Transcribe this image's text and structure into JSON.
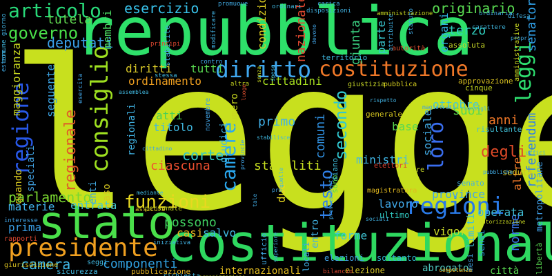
{
  "words": [
    {
      "text": "legge",
      "color": "#c8e01e"
    },
    {
      "text": "repubblica",
      "color": "#2ee06a"
    },
    {
      "text": "stato",
      "color": "#4ae04a"
    },
    {
      "text": "costituzionale",
      "color": "#2ed860"
    },
    {
      "text": "presidente",
      "color": "#f0a020"
    },
    {
      "text": "costituzione",
      "color": "#f07828"
    },
    {
      "text": "diritto",
      "color": "#40a8f0"
    },
    {
      "text": "consiglio",
      "color": "#9ee020"
    },
    {
      "text": "regione",
      "color": "#2858e8"
    },
    {
      "text": "regioni",
      "color": "#2a7ae8"
    },
    {
      "text": "leggi",
      "color": "#2ee070"
    },
    {
      "text": "camere",
      "color": "#2aa8f0"
    },
    {
      "text": "funzioni",
      "color": "#e8d820"
    },
    {
      "text": "articolo",
      "color": "#28d878"
    },
    {
      "text": "governo",
      "color": "#4ae04a"
    },
    {
      "text": "regionale",
      "color": "#e05a28"
    },
    {
      "text": "parlamento",
      "color": "#7ad830"
    },
    {
      "text": "camera",
      "color": "#40b8e8"
    },
    {
      "text": "componenti",
      "color": "#30a0e0"
    },
    {
      "text": "loro",
      "color": "#3a6ef0"
    },
    {
      "text": "secondo",
      "color": "#30c8d0"
    },
    {
      "text": "testo",
      "color": "#3080e8"
    },
    {
      "text": "comuni",
      "color": "#3090e0"
    },
    {
      "text": "corte",
      "color": "#30c8c8"
    },
    {
      "text": "esercizio",
      "color": "#38c0e8"
    },
    {
      "text": "originario",
      "color": "#58d850"
    },
    {
      "text": "terzo",
      "color": "#30d0c0"
    },
    {
      "text": "deputati",
      "color": "#3aa0e8"
    },
    {
      "text": "tutela",
      "color": "#60d850"
    },
    {
      "text": "membri",
      "color": "#4ad860"
    },
    {
      "text": "condizioni",
      "color": "#d8c820"
    },
    {
      "text": "parte",
      "color": "#38c8d0"
    },
    {
      "text": "organi",
      "color": "#30b0e0"
    },
    {
      "text": "senatori",
      "color": "#30a0e8"
    },
    {
      "text": "giunta",
      "color": "#3ad080"
    },
    {
      "text": "nazionale",
      "color": "#e04830"
    },
    {
      "text": "cittadini",
      "color": "#a8e020"
    },
    {
      "text": "ottobre",
      "color": "#40c8d8"
    },
    {
      "text": "diritti",
      "color": "#d8c828"
    },
    {
      "text": "tutti",
      "color": "#58d850"
    },
    {
      "text": "ordinamento",
      "color": "#f0a020"
    },
    {
      "text": "maggioranza",
      "color": "#c8d820"
    },
    {
      "text": "seguente",
      "color": "#3aa0e0"
    },
    {
      "text": "atti",
      "color": "#48d058"
    },
    {
      "text": "titolo",
      "color": "#40b8e0"
    },
    {
      "text": "primo",
      "color": "#40b0e8"
    },
    {
      "text": "suoi",
      "color": "#58d850"
    },
    {
      "text": "anni",
      "color": "#f07828"
    },
    {
      "text": "degli",
      "color": "#e04a28"
    },
    {
      "text": "ciascuna",
      "color": "#f05030"
    },
    {
      "text": "stabiliti",
      "color": "#c8e020"
    },
    {
      "text": "ministri",
      "color": "#40b8e8"
    },
    {
      "text": "base",
      "color": "#58d850"
    },
    {
      "text": "sociale",
      "color": "#40a8e0"
    },
    {
      "text": "altre",
      "color": "#f07828"
    },
    {
      "text": "referendum",
      "color": "#3080e8"
    },
    {
      "text": "norme",
      "color": "#3a78e8"
    },
    {
      "text": "materie",
      "color": "#40b0e8"
    },
    {
      "text": "entrata",
      "color": "#48c8d0"
    },
    {
      "text": "province",
      "color": "#40a8e8"
    },
    {
      "text": "operata",
      "color": "#40c0d8"
    },
    {
      "text": "lavoro",
      "color": "#40a8e8"
    },
    {
      "text": "possono",
      "color": "#40d060"
    },
    {
      "text": "casi",
      "color": "#e8b820"
    },
    {
      "text": "salvo",
      "color": "#40b8e0"
    },
    {
      "text": "forme",
      "color": "#40c8d8"
    },
    {
      "text": "vigore",
      "color": "#c8d828"
    },
    {
      "text": "prima",
      "color": "#3aa0e8"
    },
    {
      "text": "due",
      "color": "#e8d820"
    },
    {
      "text": "ultimo",
      "color": "#30c8c0"
    },
    {
      "text": "elezioni",
      "color": "#40a0e0"
    },
    {
      "text": "soltanto",
      "color": "#30b8d0"
    },
    {
      "text": "abrogato",
      "color": "#50c8c0"
    },
    {
      "text": "internazionali",
      "color": "#e8c020"
    },
    {
      "text": "pubblicazione",
      "color": "#e0b020"
    },
    {
      "text": "città",
      "color": "#58d850"
    },
    {
      "text": "speciali",
      "color": "#40a0e0"
    },
    {
      "text": "quando",
      "color": "#d8c820"
    },
    {
      "text": "enti",
      "color": "#40a8e0"
    },
    {
      "text": "caso",
      "color": "#d8c820"
    },
    {
      "text": "regionali",
      "color": "#40b0e0"
    },
    {
      "text": "giudici",
      "color": "#40b8e8"
    },
    {
      "text": "numero",
      "color": "#c8d820"
    },
    {
      "text": "limiti",
      "color": "#40c0d8"
    },
    {
      "text": "entro",
      "color": "#40b0e0"
    },
    {
      "text": "sensi",
      "color": "#30a0e0"
    },
    {
      "text": "metropolitane",
      "color": "#40a0e8"
    },
    {
      "text": "libertà",
      "color": "#58d850"
    },
    {
      "text": "rapporti",
      "color": "#e04830"
    },
    {
      "text": "giurisdizione",
      "color": "#d8c020"
    },
    {
      "text": "sicurezza",
      "color": "#40b8e0"
    },
    {
      "text": "elezione",
      "color": "#d8c828"
    },
    {
      "text": "locali",
      "color": "#40a8e0"
    },
    {
      "text": "seduta",
      "color": "#d8c020"
    },
    {
      "text": "senato",
      "color": "#40b0e0"
    },
    {
      "text": "risultante",
      "color": "#40c0d8"
    },
    {
      "text": "generale",
      "color": "#d8c820"
    },
    {
      "text": "giustizia",
      "color": "#c8d828"
    },
    {
      "text": "pubblica",
      "color": "#d8d020"
    },
    {
      "text": "territorio",
      "color": "#40b8e0"
    },
    {
      "text": "approvazione",
      "color": "#d8c020"
    },
    {
      "text": "cinque",
      "color": "#c8d820"
    },
    {
      "text": "assoluta",
      "color": "#c8d828"
    },
    {
      "text": "autorità",
      "color": "#e05030"
    },
    {
      "text": "stabilite",
      "color": "#40b0e0"
    },
    {
      "text": "sono",
      "color": "#58d850"
    },
    {
      "text": "siano",
      "color": "#40c0e0"
    },
    {
      "text": "ufficio",
      "color": "#40a8e0"
    },
    {
      "text": "richiesta",
      "color": "#40b8e0"
    },
    {
      "text": "bilancio",
      "color": "#e04830"
    },
    {
      "text": "tre",
      "color": "#c8d828"
    },
    {
      "text": "magistratura",
      "color": "#e0b820"
    },
    {
      "text": "mesi",
      "color": "#40a0e0"
    },
    {
      "text": "seggi",
      "color": "#40b8e0"
    },
    {
      "text": "personale",
      "color": "#c8d820"
    },
    {
      "text": "assicura",
      "color": "#d8c020"
    },
    {
      "text": "elettori",
      "color": "#e04030"
    },
    {
      "text": "comune",
      "color": "#40b8e0"
    },
    {
      "text": "giorno",
      "color": "#40b0e0"
    },
    {
      "text": "estero",
      "color": "#40a8e0"
    },
    {
      "text": "contro",
      "color": "#40a0e0"
    },
    {
      "text": "stessa",
      "color": "#40b8e0"
    },
    {
      "text": "altra",
      "color": "#c8d820"
    },
    {
      "text": "principi",
      "color": "#e04830"
    },
    {
      "text": "modificare",
      "color": "#40b0e0"
    },
    {
      "text": "promuove",
      "color": "#40a8e0"
    },
    {
      "text": "ordinari",
      "color": "#40b8e0"
    },
    {
      "text": "disposizioni",
      "color": "#40b0e0"
    },
    {
      "text": "carica",
      "color": "#40a8e0"
    },
    {
      "text": "amministrazione",
      "color": "#c8d820"
    },
    {
      "text": "amministrative",
      "color": "#c8d820"
    },
    {
      "text": "ordinaria",
      "color": "#40a8e0"
    },
    {
      "text": "difesa",
      "color": "#40b0e0"
    },
    {
      "text": "carattere",
      "color": "#40b8e0"
    },
    {
      "text": "novembre",
      "color": "#40a0e0"
    },
    {
      "text": "luogo",
      "color": "#e05030"
    },
    {
      "text": "stabilisce",
      "color": "#40b8e0"
    },
    {
      "text": "esercita",
      "color": "#40a0e0"
    },
    {
      "text": "attribuite",
      "color": "#40b0e0"
    },
    {
      "text": "statuto",
      "color": "#40a8e0"
    },
    {
      "text": "consigli",
      "color": "#40b8e0"
    },
    {
      "text": "magistrati",
      "color": "#40a0e0"
    },
    {
      "text": "competenza",
      "color": "#e0b020"
    },
    {
      "text": "organizzazione",
      "color": "#c8d820"
    },
    {
      "text": "superiore",
      "color": "#40b0e0"
    },
    {
      "text": "pubbliche",
      "color": "#40a8e0"
    },
    {
      "text": "mediante",
      "color": "#40b8e0"
    },
    {
      "text": "interesse",
      "color": "#40a0e0"
    },
    {
      "text": "iniziativa",
      "color": "#40b0e0"
    },
    {
      "text": "cittadino",
      "color": "#40a8e0"
    },
    {
      "text": "assemblea",
      "color": "#40b8e0"
    },
    {
      "text": "provincie",
      "color": "#40a0e0"
    },
    {
      "text": "sociali",
      "color": "#40b0e0"
    },
    {
      "text": "provvedimenti",
      "color": "#40a8e0"
    },
    {
      "text": "autorizzazione",
      "color": "#c8d820"
    },
    {
      "text": "quelle",
      "color": "#40b8e0"
    },
    {
      "text": "devono",
      "color": "#40a0e0"
    },
    {
      "text": "rispetto",
      "color": "#40b0e0"
    },
    {
      "text": "tale",
      "color": "#40a8e0"
    },
    {
      "text": "senza",
      "color": "#c8d820"
    },
    {
      "text": "spese",
      "color": "#40b8e0"
    },
    {
      "text": "pro",
      "color": "#40a0e0"
    },
    {
      "text": "uffici",
      "color": "#40b0e0"
    },
    {
      "text": "propri",
      "color": "#40a8e0"
    }
  ]
}
